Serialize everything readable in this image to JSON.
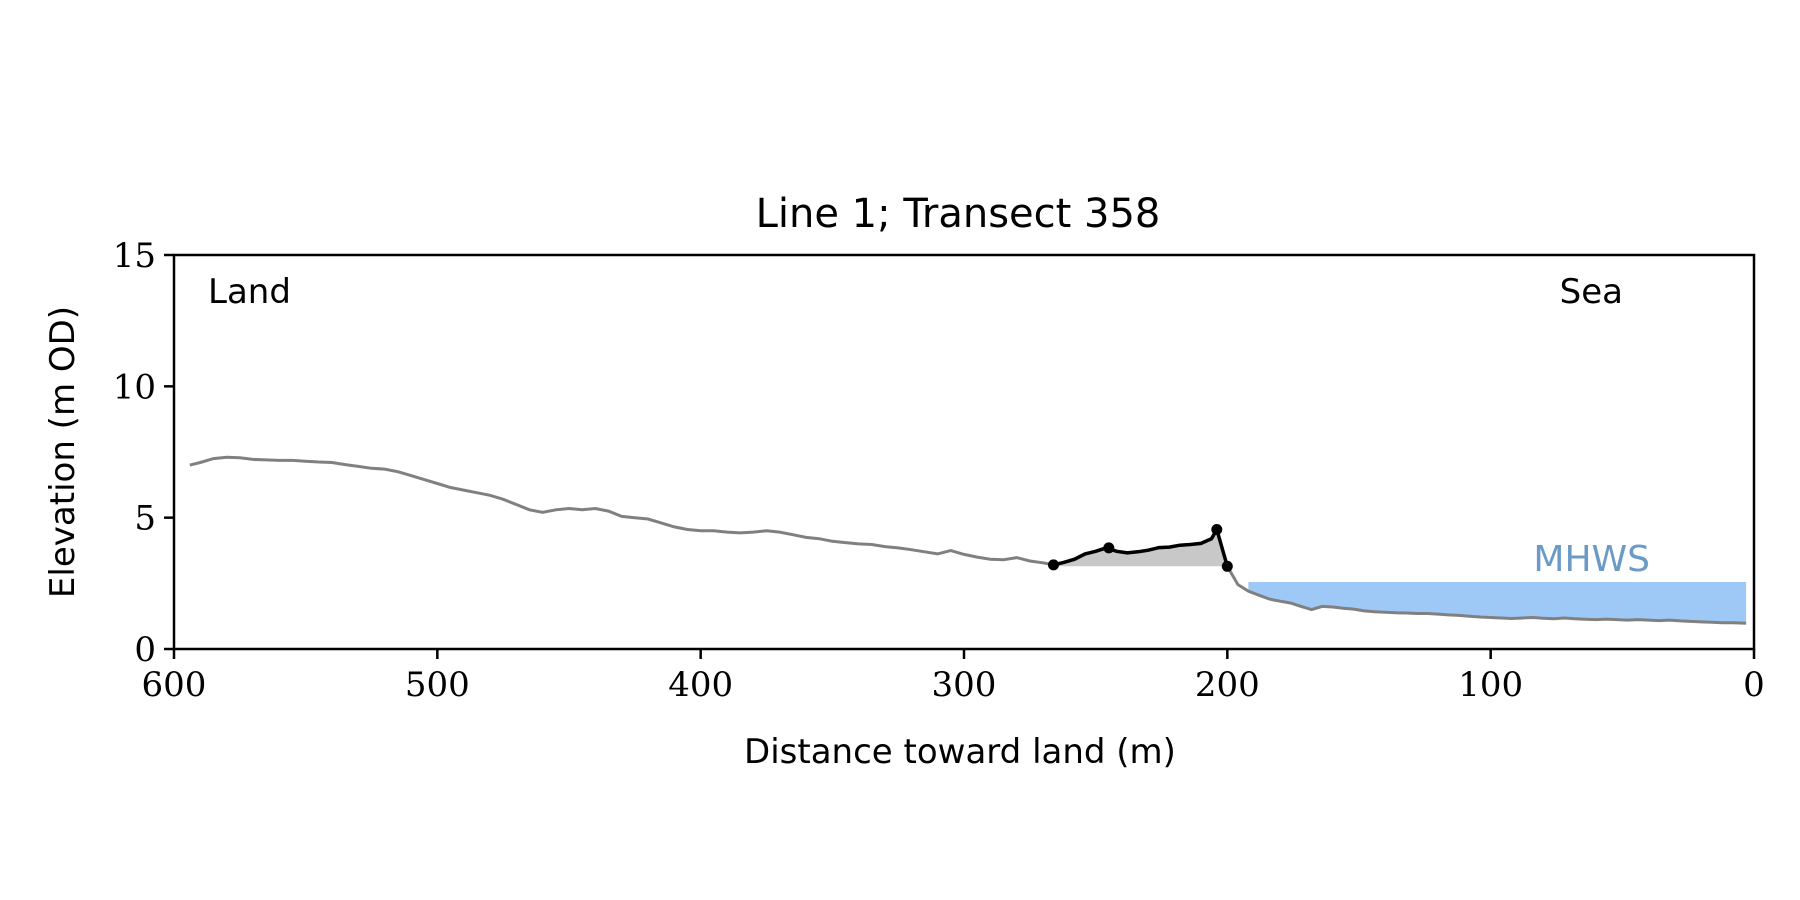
{
  "chart_data": {
    "type": "line",
    "title": "Line 1; Transect 358",
    "xlabel": "Distance toward land (m)",
    "ylabel": "Elevation (m OD)",
    "xlim": [
      600,
      0
    ],
    "ylim": [
      0,
      15
    ],
    "x_ticks": [
      600,
      500,
      400,
      300,
      200,
      100,
      0
    ],
    "y_ticks": [
      0,
      5,
      10,
      15
    ],
    "grid": false,
    "annotations": {
      "land": "Land",
      "sea": "Sea",
      "mhws": "MHWS"
    },
    "mhws_level": 2.55,
    "mhws_x_range": [
      192,
      3
    ],
    "profile": {
      "x": [
        594,
        590,
        585,
        580,
        575,
        570,
        565,
        560,
        555,
        550,
        545,
        540,
        535,
        530,
        525,
        520,
        515,
        510,
        505,
        500,
        495,
        490,
        485,
        480,
        475,
        470,
        465,
        460,
        455,
        450,
        445,
        440,
        435,
        430,
        425,
        420,
        415,
        410,
        405,
        400,
        395,
        390,
        385,
        380,
        375,
        370,
        365,
        360,
        355,
        350,
        345,
        340,
        335,
        330,
        325,
        320,
        315,
        310,
        305,
        300,
        295,
        290,
        285,
        280,
        275,
        270,
        266,
        262,
        258,
        254,
        250,
        246,
        242,
        238,
        234,
        230,
        226,
        222,
        218,
        214,
        210,
        206,
        204,
        200,
        196,
        192,
        188,
        184,
        180,
        176,
        172,
        168,
        164,
        160,
        156,
        152,
        148,
        144,
        140,
        136,
        132,
        128,
        124,
        120,
        116,
        112,
        108,
        104,
        100,
        96,
        92,
        88,
        84,
        80,
        76,
        72,
        68,
        64,
        60,
        56,
        52,
        48,
        44,
        40,
        36,
        32,
        28,
        24,
        20,
        16,
        12,
        8,
        3
      ],
      "y": [
        7.0,
        7.1,
        7.25,
        7.3,
        7.28,
        7.22,
        7.2,
        7.18,
        7.18,
        7.15,
        7.12,
        7.1,
        7.02,
        6.95,
        6.88,
        6.85,
        6.75,
        6.6,
        6.45,
        6.3,
        6.15,
        6.05,
        5.95,
        5.85,
        5.7,
        5.5,
        5.3,
        5.2,
        5.3,
        5.35,
        5.3,
        5.35,
        5.25,
        5.05,
        5.0,
        4.95,
        4.8,
        4.65,
        4.55,
        4.5,
        4.5,
        4.45,
        4.42,
        4.45,
        4.5,
        4.45,
        4.35,
        4.25,
        4.2,
        4.1,
        4.05,
        4.0,
        3.98,
        3.9,
        3.85,
        3.78,
        3.7,
        3.62,
        3.75,
        3.6,
        3.5,
        3.42,
        3.4,
        3.48,
        3.35,
        3.28,
        3.2,
        3.3,
        3.42,
        3.62,
        3.72,
        3.85,
        3.72,
        3.66,
        3.7,
        3.76,
        3.86,
        3.88,
        3.95,
        3.98,
        4.02,
        4.2,
        4.55,
        3.15,
        2.45,
        2.2,
        2.05,
        1.9,
        1.82,
        1.75,
        1.62,
        1.5,
        1.62,
        1.6,
        1.55,
        1.52,
        1.45,
        1.42,
        1.4,
        1.38,
        1.37,
        1.35,
        1.35,
        1.33,
        1.3,
        1.28,
        1.25,
        1.22,
        1.2,
        1.18,
        1.16,
        1.18,
        1.2,
        1.17,
        1.15,
        1.18,
        1.15,
        1.13,
        1.12,
        1.14,
        1.12,
        1.1,
        1.12,
        1.1,
        1.08,
        1.1,
        1.07,
        1.05,
        1.03,
        1.02,
        1.0,
        1.0,
        0.98
      ]
    },
    "feature": {
      "x": [
        266,
        262,
        258,
        254,
        250,
        246,
        242,
        238,
        234,
        230,
        226,
        222,
        218,
        214,
        210,
        206,
        204,
        200
      ],
      "y": [
        3.2,
        3.3,
        3.42,
        3.62,
        3.72,
        3.85,
        3.72,
        3.66,
        3.7,
        3.76,
        3.86,
        3.88,
        3.95,
        3.98,
        4.02,
        4.2,
        4.55,
        3.15
      ],
      "base": 3.15,
      "markers": [
        {
          "x": 266,
          "y": 3.2
        },
        {
          "x": 245,
          "y": 3.85
        },
        {
          "x": 204,
          "y": 4.55
        },
        {
          "x": 200,
          "y": 3.15
        }
      ]
    },
    "colors": {
      "profile": "#808080",
      "feature": "#000000",
      "feature_fill": "#c8c8c8",
      "water": "#9ec9f7",
      "mhws_text": "#6b9ac6"
    }
  }
}
